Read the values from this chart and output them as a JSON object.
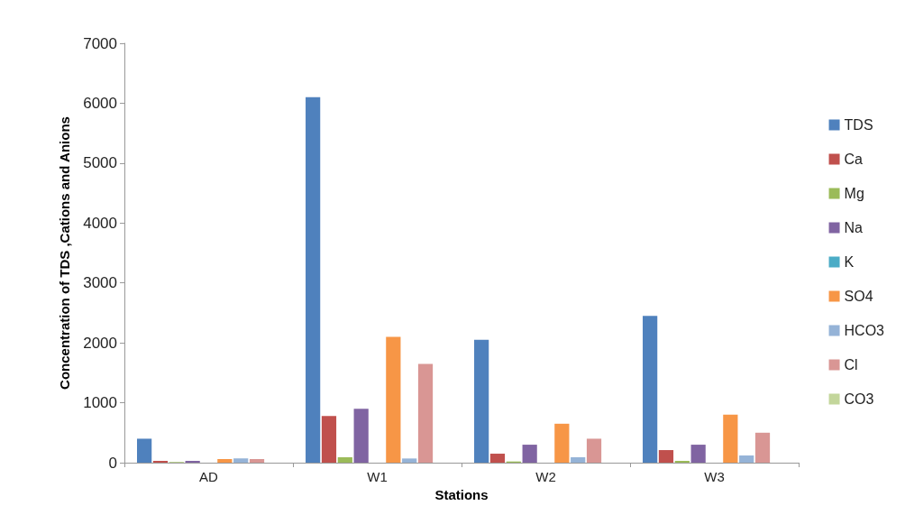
{
  "chart_data": {
    "type": "bar",
    "xlabel": "Stations",
    "ylabel": "Concentration of TDS ,Cations and Anions",
    "categories": [
      "AD",
      "W1",
      "W2",
      "W3"
    ],
    "series": [
      {
        "name": "TDS",
        "color": "#4f81bd",
        "values": [
          400,
          6100,
          2050,
          2450
        ]
      },
      {
        "name": "Ca",
        "color": "#c0504d",
        "values": [
          30,
          780,
          150,
          210
        ]
      },
      {
        "name": "Mg",
        "color": "#9bbb59",
        "values": [
          10,
          90,
          20,
          30
        ]
      },
      {
        "name": "Na",
        "color": "#8064a2",
        "values": [
          30,
          900,
          300,
          300
        ]
      },
      {
        "name": "K",
        "color": "#4bacc6",
        "values": [
          0,
          0,
          0,
          0
        ]
      },
      {
        "name": "SO4",
        "color": "#f79646",
        "values": [
          60,
          2100,
          650,
          800
        ]
      },
      {
        "name": "HCO3",
        "color": "#95b3d7",
        "values": [
          70,
          70,
          90,
          120
        ]
      },
      {
        "name": "Cl",
        "color": "#d99694",
        "values": [
          60,
          1650,
          400,
          500
        ]
      },
      {
        "name": "CO3",
        "color": "#c3d69b",
        "values": [
          0,
          0,
          0,
          0
        ]
      }
    ],
    "ylim": [
      0,
      7000
    ],
    "yticks": [
      0,
      1000,
      2000,
      3000,
      4000,
      5000,
      6000,
      7000
    ],
    "grid": false,
    "legend": "right"
  }
}
